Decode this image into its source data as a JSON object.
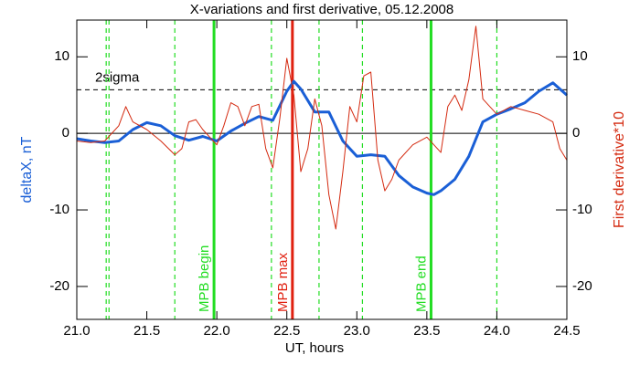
{
  "chart_data": {
    "type": "line",
    "title": "X-variations and first derivative, 05.12.2008",
    "xlabel": "UT, hours",
    "ylabel": "deltaX, nT",
    "y2label": "First derivative*10",
    "xlim": [
      21.0,
      24.5
    ],
    "xticks": [
      {
        "value": 21,
        "label": "21.0"
      },
      21.5,
      {
        "value": 22,
        "label": "22.0"
      },
      22.5,
      {
        "value": 23,
        "label": "23.0"
      },
      23.5,
      {
        "value": 24,
        "label": "24.0"
      },
      24.5
    ],
    "ylim": [
      -24.3,
      14.8
    ],
    "yticks": [
      -20,
      -10,
      0,
      10
    ],
    "y2lim": [
      -24.3,
      14.8
    ],
    "y2ticks": [
      -20,
      -10,
      0,
      10
    ],
    "series": [
      {
        "name": "deltaX, nT",
        "color": "#1a5fd6",
        "axis": "y",
        "x": [
          21.0,
          21.1,
          21.2,
          21.3,
          21.4,
          21.5,
          21.6,
          21.7,
          21.8,
          21.9,
          22.0,
          22.1,
          22.2,
          22.3,
          22.4,
          22.5,
          22.55,
          22.6,
          22.7,
          22.8,
          22.9,
          23.0,
          23.1,
          23.2,
          23.3,
          23.4,
          23.5,
          23.55,
          23.6,
          23.7,
          23.8,
          23.9,
          24.0,
          24.1,
          24.2,
          24.3,
          24.4,
          24.5
        ],
        "values": [
          -0.7,
          -1.0,
          -1.2,
          -1.0,
          0.5,
          1.4,
          1.0,
          -0.3,
          -0.9,
          -0.4,
          -1.0,
          0.3,
          1.3,
          2.2,
          1.7,
          5.5,
          6.8,
          5.8,
          2.8,
          2.8,
          -1.0,
          -3.0,
          -2.8,
          -3.0,
          -5.5,
          -7.0,
          -7.8,
          -8.0,
          -7.5,
          -6.0,
          -3.0,
          1.5,
          2.5,
          3.2,
          4.0,
          5.5,
          6.6,
          5.0
        ]
      },
      {
        "name": "First derivative*10",
        "color": "#d42a10",
        "axis": "y2",
        "x": [
          21.0,
          21.1,
          21.2,
          21.3,
          21.35,
          21.4,
          21.5,
          21.6,
          21.7,
          21.75,
          21.8,
          21.85,
          21.9,
          22.0,
          22.05,
          22.1,
          22.15,
          22.2,
          22.25,
          22.3,
          22.35,
          22.4,
          22.45,
          22.5,
          22.55,
          22.6,
          22.65,
          22.7,
          22.75,
          22.8,
          22.85,
          22.9,
          22.95,
          23.0,
          23.05,
          23.1,
          23.15,
          23.2,
          23.25,
          23.3,
          23.4,
          23.5,
          23.6,
          23.65,
          23.7,
          23.75,
          23.8,
          23.85,
          23.9,
          24.0,
          24.1,
          24.2,
          24.3,
          24.4,
          24.45,
          24.5
        ],
        "values": [
          -1.0,
          -1.2,
          -1.0,
          1.0,
          3.5,
          1.5,
          0.5,
          -1.0,
          -2.8,
          -2.0,
          1.5,
          1.8,
          0.5,
          -1.5,
          1.0,
          4.0,
          3.5,
          1.0,
          3.5,
          3.8,
          -2.0,
          -4.5,
          2.0,
          9.8,
          5.0,
          -5.0,
          -2.0,
          4.5,
          1.0,
          -8.0,
          -12.5,
          -5.0,
          3.5,
          1.5,
          7.5,
          8.0,
          -3.5,
          -7.5,
          -6.0,
          -3.5,
          -1.5,
          -0.5,
          -2.5,
          3.5,
          5.0,
          3.0,
          7.0,
          14.0,
          4.5,
          2.5,
          3.5,
          3.0,
          2.5,
          1.5,
          -2.0,
          -3.5
        ]
      }
    ],
    "hlines": [
      {
        "y": 5.7,
        "label": "2sigma",
        "style": "dashed"
      },
      {
        "y": 0,
        "style": "solid"
      }
    ],
    "vlines": [
      {
        "x": 21.21,
        "color": "#22dd22",
        "style": "dashed"
      },
      {
        "x": 21.23,
        "color": "#22dd22",
        "style": "dashed"
      },
      {
        "x": 21.7,
        "color": "#22dd22",
        "style": "dashed"
      },
      {
        "x": 21.98,
        "color": "#22dd22",
        "style": "solid",
        "label": "MPB begin"
      },
      {
        "x": 22.39,
        "color": "#22dd22",
        "style": "dashed"
      },
      {
        "x": 22.54,
        "color": "#e02010",
        "style": "solid",
        "label": "MPB max"
      },
      {
        "x": 22.73,
        "color": "#22dd22",
        "style": "dashed"
      },
      {
        "x": 23.04,
        "color": "#22dd22",
        "style": "dashed"
      },
      {
        "x": 23.53,
        "color": "#22dd22",
        "style": "solid",
        "label": "MPB end"
      },
      {
        "x": 24.0,
        "color": "#22dd22",
        "style": "dashed"
      }
    ]
  }
}
